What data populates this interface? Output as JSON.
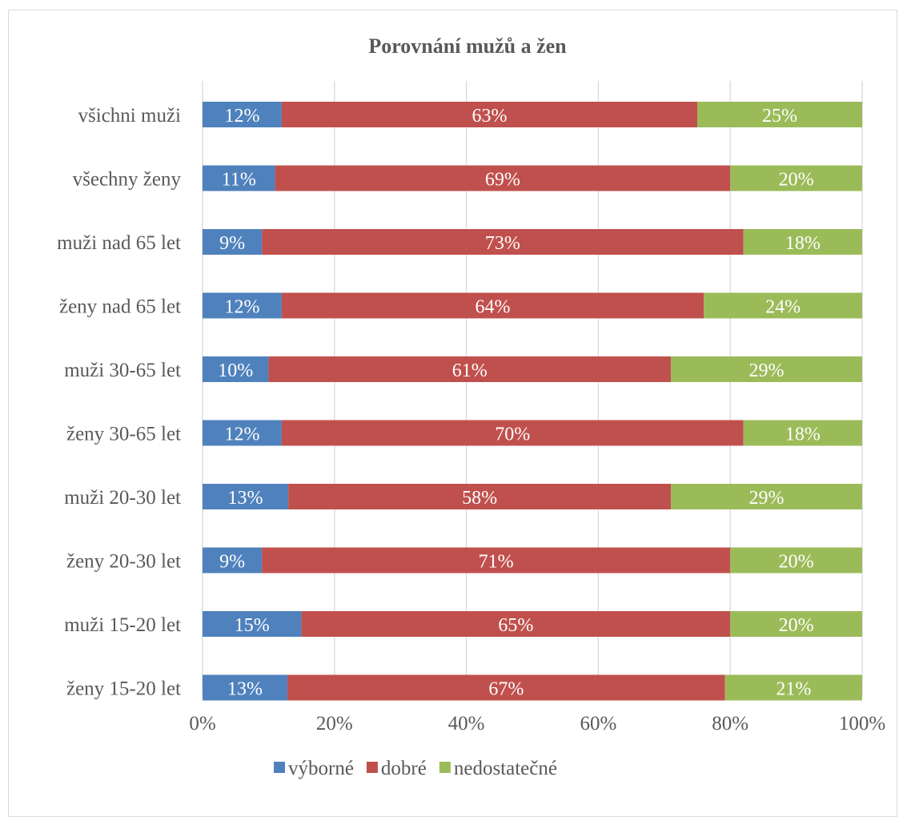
{
  "chart_data": {
    "type": "bar",
    "orientation": "horizontal",
    "stacked": "percent",
    "title": "Porovnání mužů a žen",
    "categories": [
      "všichni muži",
      "všechny ženy",
      "muži nad 65 let",
      "ženy nad 65 let",
      "muži 30-65 let",
      "ženy 30-65 let",
      "muži 20-30 let",
      "ženy 20-30 let",
      "muži 15-20 let",
      "ženy 15-20 let"
    ],
    "series": [
      {
        "name": "výborné",
        "color": "#4f81bd",
        "values": [
          12,
          11,
          9,
          12,
          10,
          12,
          13,
          9,
          15,
          13
        ],
        "labels": [
          "12%",
          "11%",
          "9%",
          "12%",
          "10%",
          "12%",
          "13%",
          "9%",
          "15%",
          "13%"
        ]
      },
      {
        "name": "dobré",
        "color": "#c0504d",
        "values": [
          63,
          69,
          73,
          64,
          61,
          70,
          58,
          71,
          65,
          67
        ],
        "labels": [
          "63%",
          "69%",
          "73%",
          "64%",
          "61%",
          "70%",
          "58%",
          "71%",
          "65%",
          "67%"
        ]
      },
      {
        "name": "nedostatečné",
        "color": "#9bbb59",
        "values": [
          25,
          20,
          18,
          24,
          29,
          18,
          29,
          20,
          20,
          21
        ],
        "labels": [
          "25%",
          "20%",
          "18%",
          "24%",
          "29%",
          "18%",
          "29%",
          "20%",
          "20%",
          "21%"
        ]
      }
    ],
    "x_ticks": [
      "0%",
      "20%",
      "40%",
      "60%",
      "80%",
      "100%"
    ],
    "xlim": [
      0,
      100
    ],
    "grid": true,
    "legend_position": "bottom"
  }
}
